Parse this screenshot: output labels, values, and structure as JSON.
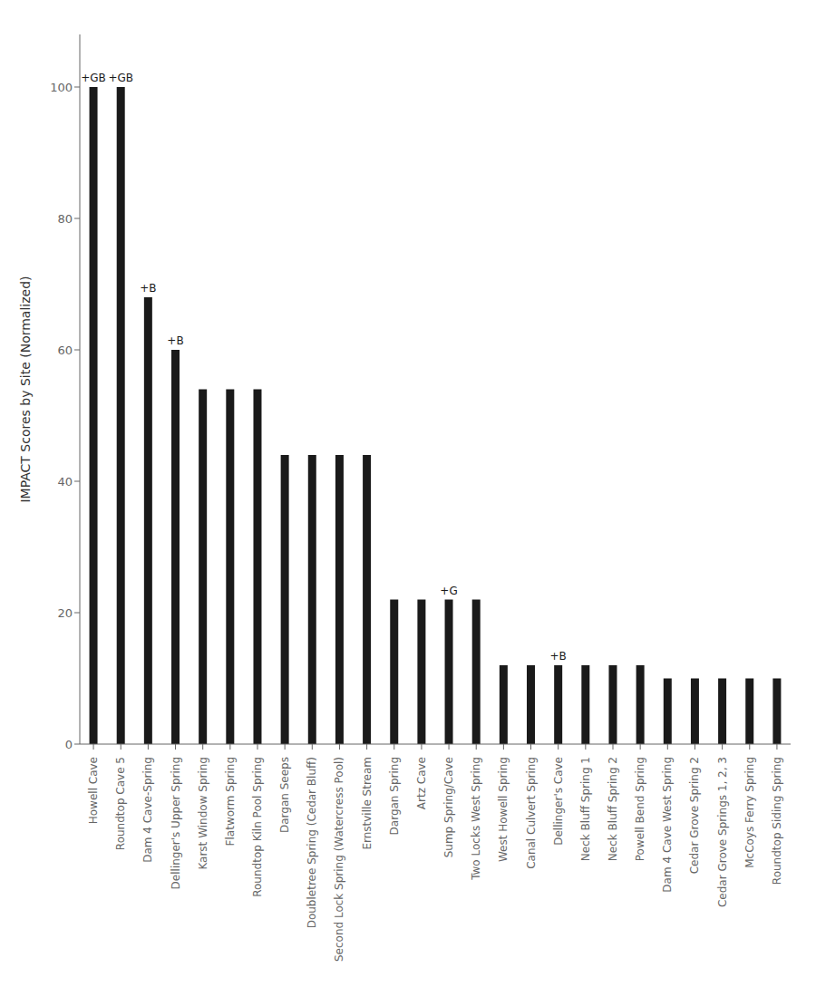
{
  "chart_data": {
    "type": "bar",
    "categories": [
      "Howell Cave",
      "Roundtop Cave 5",
      "Dam 4 Cave-Spring",
      "Dellinger's Upper Spring",
      "Karst Window Spring",
      "Flatworm Spring",
      "Roundtop Kiln Pool Spring",
      "Dargan Seeps",
      "Doubletree Spring (Cedar Bluff)",
      "Second Lock Spring (Watercress Pool)",
      "Ernstville Stream",
      "Dargan Spring",
      "Artz Cave",
      "Sump Spring/Cave",
      "Two Locks West Spring",
      "West Howell Spring",
      "Canal Culvert Spring",
      "Dellinger's Cave",
      "Neck Bluff Spring 1",
      "Neck Bluff Spring 2",
      "Powell Bend Spring",
      "Dam 4 Cave West Spring",
      "Cedar Grove Spring 2",
      "Cedar Grove Springs 1, 2, 3",
      "McCoys Ferry Spring",
      "Roundtop Siding Spring"
    ],
    "values": [
      100,
      100,
      68,
      60,
      54,
      54,
      54,
      44,
      44,
      44,
      44,
      22,
      22,
      22,
      22,
      12,
      12,
      12,
      12,
      12,
      12,
      10,
      10,
      10,
      10,
      10
    ],
    "color": "#1a1a1a",
    "ylabel": "IMPACT Scores by Site (Normalized)",
    "ylim": [
      0,
      108
    ],
    "yticks": [
      0,
      20,
      40,
      60,
      80,
      100
    ],
    "grid": false,
    "annotations": [
      {
        "category": "Howell Cave",
        "text": "+GB"
      },
      {
        "category": "Roundtop Cave 5",
        "text": "+GB"
      },
      {
        "category": "Dam 4 Cave-Spring",
        "text": "+B"
      },
      {
        "category": "Dellinger's Upper Spring",
        "text": "+B"
      },
      {
        "category": "Sump Spring/Cave",
        "text": "+G"
      },
      {
        "category": "Dellinger's Cave",
        "text": "+B"
      }
    ]
  }
}
